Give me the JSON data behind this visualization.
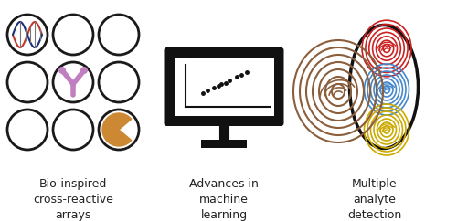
{
  "background_color": "#ffffff",
  "panel1_label": "Bio-inspired\ncross-reactive\narrays",
  "panel2_label": "Advances in\nmachine\nlearning",
  "panel3_label": "Multiple\nanalyte\ndetection",
  "label_fontsize": 9,
  "label_color": "#222222",
  "circle_edgecolor": "#1a1a1a",
  "circle_lw": 2.0,
  "dna_color1": "#c0392b",
  "dna_color2": "#1a2e7a",
  "antibody_color": "#c080c0",
  "enzyme_color": "#cc8833",
  "monitor_color": "#111111",
  "dot_color": "#111111",
  "fingerprint_brown": "#8B5e3c",
  "fingerprint_red": "#cc2222",
  "fingerprint_blue": "#4488cc",
  "fingerprint_yellow": "#ccaa00"
}
